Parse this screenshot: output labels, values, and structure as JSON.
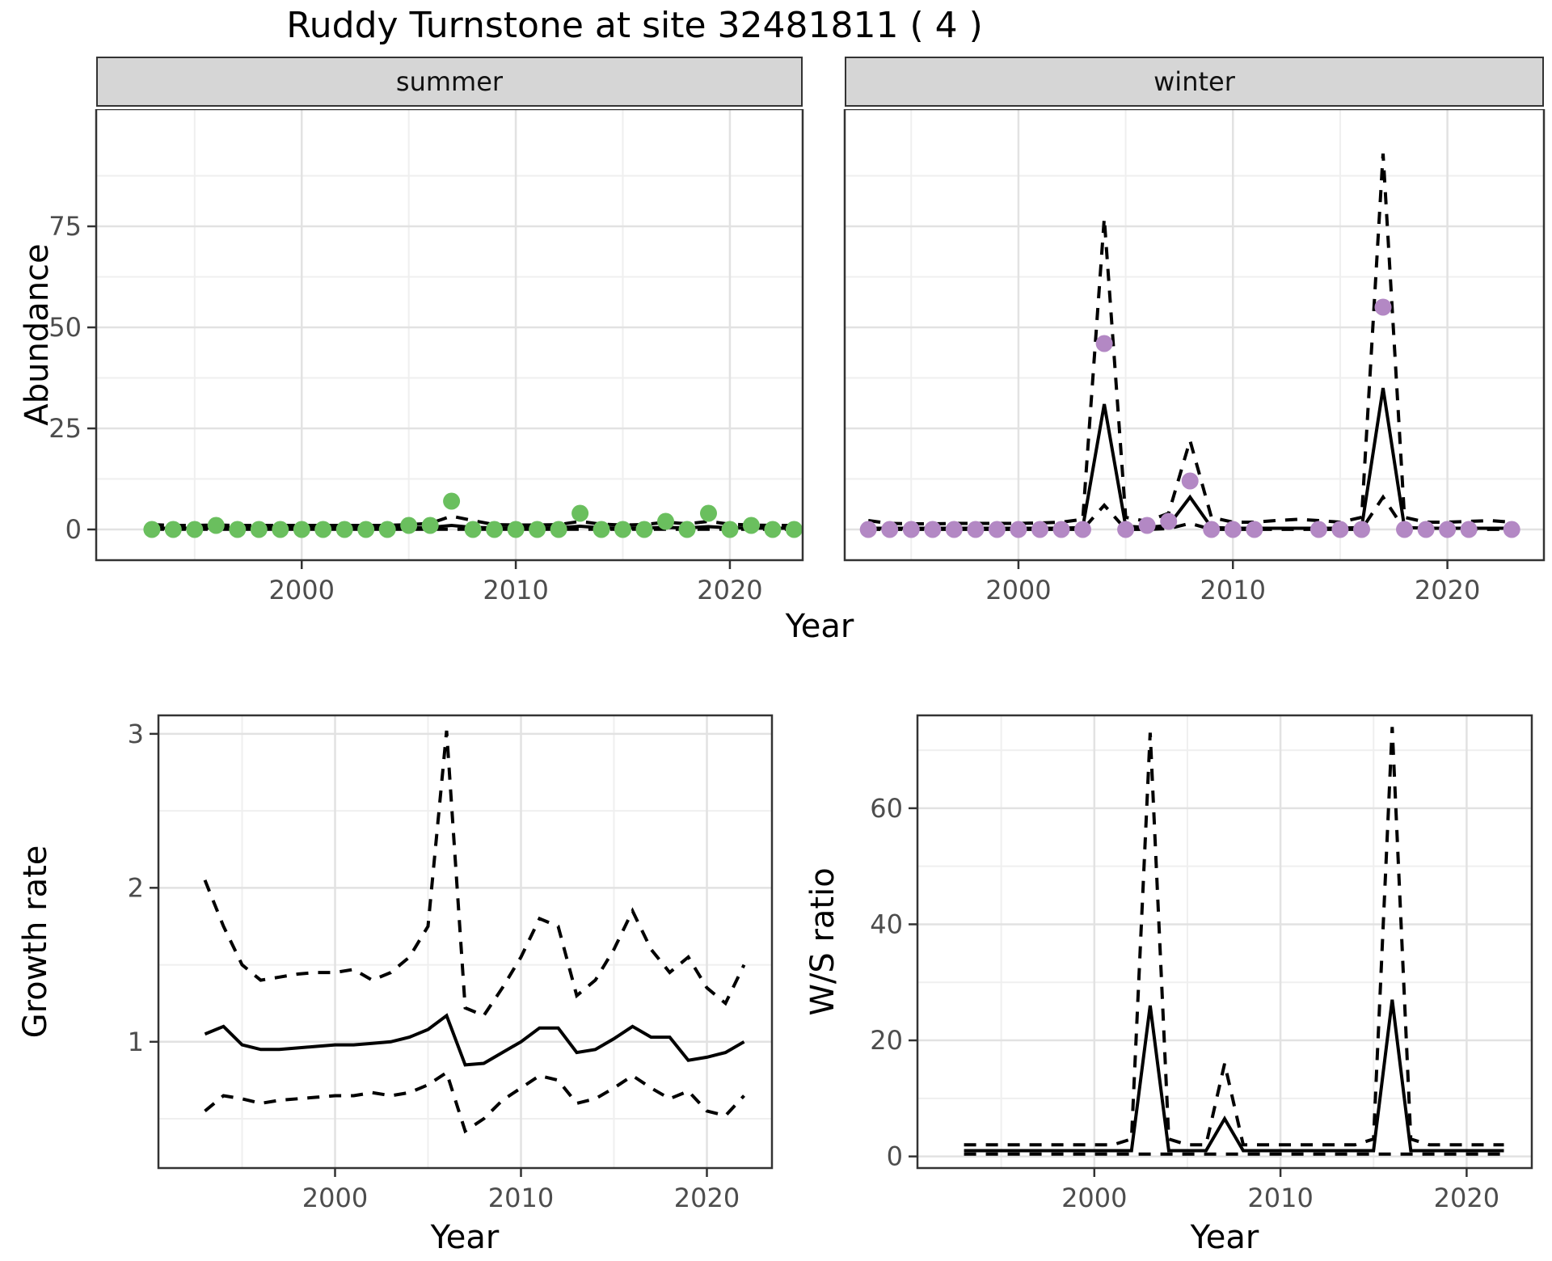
{
  "title": "Ruddy Turnstone at site 32481811 ( 4 )",
  "colors": {
    "summer_point": "#6abf5e",
    "winter_point": "#b388c4",
    "line": "#000000",
    "grid_major": "#e2e2e2",
    "grid_minor": "#efefef",
    "strip_bg": "#d6d6d6",
    "axis_text": "#4d4d4d",
    "panel_border": "#333333"
  },
  "facets": {
    "summer_label": "summer",
    "winter_label": "winter"
  },
  "axis_labels": {
    "abundance": "Abundance",
    "year_top": "Year",
    "growth": "Growth rate",
    "year_growth": "Year",
    "ws": "W/S ratio",
    "year_ws": "Year"
  },
  "chart_data": [
    {
      "name": "abundance-summer",
      "type": "line",
      "facet_label": "summer",
      "x_label": "Year",
      "y_label": "Abundance",
      "xlim": [
        1990.4,
        2023.4
      ],
      "ylim": [
        -7.6,
        104
      ],
      "x_ticks": [
        2000,
        2010,
        2020
      ],
      "x_minor": [
        1995,
        2005,
        2015
      ],
      "y_ticks": [
        0,
        25,
        50,
        75
      ],
      "y_minor": [
        12.5,
        37.5,
        62.5,
        87.5
      ],
      "show_y_labels": true,
      "years": [
        1993,
        1994,
        1995,
        1996,
        1997,
        1998,
        1999,
        2000,
        2001,
        2002,
        2003,
        2004,
        2005,
        2006,
        2007,
        2008,
        2009,
        2010,
        2011,
        2012,
        2013,
        2014,
        2015,
        2016,
        2017,
        2018,
        2019,
        2020,
        2021,
        2022,
        2023
      ],
      "series": [
        {
          "name": "upper-ci",
          "style": "dashed",
          "values": [
            1.2,
            1.0,
            1.0,
            1.1,
            1.0,
            1.0,
            1.0,
            1.0,
            1.0,
            1.0,
            1.0,
            1.0,
            1.2,
            1.5,
            3.3,
            2.2,
            1.2,
            1.1,
            1.1,
            1.2,
            2.0,
            1.3,
            1.1,
            1.2,
            1.8,
            1.4,
            2.0,
            1.3,
            1.1,
            1.0,
            1.0
          ]
        },
        {
          "name": "fit",
          "style": "solid",
          "values": [
            0.3,
            0.3,
            0.3,
            0.35,
            0.3,
            0.3,
            0.3,
            0.3,
            0.3,
            0.3,
            0.3,
            0.3,
            0.4,
            0.5,
            1.0,
            0.5,
            0.4,
            0.35,
            0.35,
            0.4,
            0.8,
            0.4,
            0.35,
            0.35,
            0.5,
            0.4,
            0.7,
            0.4,
            0.35,
            0.3,
            0.3
          ]
        },
        {
          "name": "lower-ci",
          "style": "dashed",
          "values": [
            0.05,
            0.05,
            0.05,
            0.05,
            0.05,
            0.05,
            0.05,
            0.05,
            0.05,
            0.05,
            0.05,
            0.05,
            0.05,
            0.05,
            0.05,
            0.05,
            0.05,
            0.05,
            0.05,
            0.05,
            0.05,
            0.05,
            0.05,
            0.05,
            0.05,
            0.05,
            0.05,
            0.05,
            0.05,
            0.05,
            0.05
          ]
        }
      ],
      "points": {
        "color_key": "summer_point",
        "years": [
          1993,
          1994,
          1995,
          1996,
          1997,
          1998,
          1999,
          2000,
          2001,
          2002,
          2003,
          2004,
          2005,
          2006,
          2007,
          2008,
          2009,
          2010,
          2011,
          2012,
          2013,
          2014,
          2015,
          2016,
          2017,
          2018,
          2019,
          2020,
          2021,
          2022,
          2023
        ],
        "values": [
          0,
          0,
          0,
          1,
          0,
          0,
          0,
          0,
          0,
          0,
          0,
          0,
          1,
          1,
          7,
          0,
          0,
          0,
          0,
          0,
          4,
          0,
          0,
          0,
          2,
          0,
          4,
          0,
          1,
          0,
          0
        ]
      }
    },
    {
      "name": "abundance-winter",
      "type": "line",
      "facet_label": "winter",
      "x_label": "Year",
      "y_label": "Abundance",
      "xlim": [
        1991.9,
        2024.5
      ],
      "ylim": [
        -7.6,
        104
      ],
      "x_ticks": [
        2000,
        2010,
        2020
      ],
      "x_minor": [
        1995,
        2005,
        2015
      ],
      "y_ticks": [
        0,
        25,
        50,
        75
      ],
      "y_minor": [
        12.5,
        37.5,
        62.5,
        87.5
      ],
      "show_y_labels": false,
      "years": [
        1993,
        1994,
        1995,
        1996,
        1997,
        1998,
        1999,
        2000,
        2001,
        2002,
        2003,
        2004,
        2005,
        2006,
        2007,
        2008,
        2009,
        2010,
        2011,
        2012,
        2013,
        2014,
        2015,
        2016,
        2017,
        2018,
        2019,
        2020,
        2021,
        2022,
        2023
      ],
      "series": [
        {
          "name": "upper-ci",
          "style": "dashed",
          "values": [
            2.2,
            1.5,
            1.4,
            1.4,
            1.5,
            1.5,
            1.5,
            1.5,
            1.6,
            1.8,
            2.5,
            77,
            3,
            2,
            4,
            22,
            3,
            1.8,
            1.8,
            2.2,
            2.5,
            2.2,
            1.8,
            3,
            93,
            3,
            1.8,
            1.8,
            2,
            2.2,
            1.8
          ]
        },
        {
          "name": "fit",
          "style": "solid",
          "values": [
            0.3,
            0.3,
            0.3,
            0.3,
            0.3,
            0.3,
            0.3,
            0.3,
            0.3,
            0.3,
            0.5,
            31,
            0.8,
            0.5,
            1.0,
            8,
            0.5,
            0.3,
            0.3,
            0.3,
            0.3,
            0.3,
            0.3,
            0.5,
            35,
            0.5,
            0.3,
            0.3,
            0.3,
            0.3,
            0.3
          ]
        },
        {
          "name": "lower-ci",
          "style": "dashed",
          "values": [
            0.02,
            0.02,
            0.02,
            0.02,
            0.02,
            0.02,
            0.02,
            0.02,
            0.02,
            0.02,
            0.02,
            6,
            0.02,
            0.02,
            0.2,
            1.5,
            0.02,
            0.02,
            0.02,
            0.02,
            0.02,
            0.02,
            0.02,
            0.02,
            8,
            0.02,
            0.02,
            0.02,
            0.02,
            0.02,
            0.02
          ]
        }
      ],
      "points": {
        "color_key": "winter_point",
        "years": [
          1993,
          1994,
          1995,
          1996,
          1997,
          1998,
          1999,
          2000,
          2001,
          2002,
          2003,
          2004,
          2005,
          2006,
          2007,
          2008,
          2009,
          2010,
          2011,
          2014,
          2015,
          2016,
          2017,
          2018,
          2019,
          2020,
          2021,
          2023
        ],
        "values": [
          0,
          0,
          0,
          0,
          0,
          0,
          0,
          0,
          0,
          0,
          0,
          46,
          0,
          1,
          2,
          12,
          0,
          0,
          0,
          0,
          0,
          0,
          55,
          0,
          0,
          0,
          0,
          0
        ]
      }
    },
    {
      "name": "growth-rate",
      "type": "line",
      "facet_label": "",
      "x_label": "Year",
      "y_label": "Growth rate",
      "xlim": [
        1990.5,
        2023.5
      ],
      "ylim": [
        0.18,
        3.12
      ],
      "x_ticks": [
        2000,
        2010,
        2020
      ],
      "x_minor": [
        1995,
        2005,
        2015
      ],
      "y_ticks": [
        1,
        2,
        3
      ],
      "y_minor": [
        0.5,
        1.5,
        2.5
      ],
      "show_y_labels": true,
      "years": [
        1993,
        1994,
        1995,
        1996,
        1997,
        1998,
        1999,
        2000,
        2001,
        2002,
        2003,
        2004,
        2005,
        2006,
        2007,
        2008,
        2009,
        2010,
        2011,
        2012,
        2013,
        2014,
        2015,
        2016,
        2017,
        2018,
        2019,
        2020,
        2021,
        2022
      ],
      "series": [
        {
          "name": "upper-ci",
          "style": "dashed",
          "values": [
            2.05,
            1.75,
            1.5,
            1.4,
            1.42,
            1.44,
            1.45,
            1.45,
            1.47,
            1.4,
            1.45,
            1.55,
            1.75,
            3.02,
            1.22,
            1.17,
            1.35,
            1.55,
            1.8,
            1.75,
            1.3,
            1.4,
            1.6,
            1.85,
            1.6,
            1.45,
            1.55,
            1.35,
            1.25,
            1.5
          ]
        },
        {
          "name": "fit",
          "style": "solid",
          "values": [
            1.05,
            1.1,
            0.98,
            0.95,
            0.95,
            0.96,
            0.97,
            0.98,
            0.98,
            0.99,
            1.0,
            1.03,
            1.08,
            1.17,
            0.85,
            0.86,
            0.93,
            1.0,
            1.09,
            1.09,
            0.93,
            0.95,
            1.02,
            1.1,
            1.03,
            1.03,
            0.88,
            0.9,
            0.93,
            1.0
          ]
        },
        {
          "name": "lower-ci",
          "style": "dashed",
          "values": [
            0.55,
            0.65,
            0.63,
            0.6,
            0.62,
            0.63,
            0.64,
            0.65,
            0.65,
            0.67,
            0.65,
            0.67,
            0.72,
            0.8,
            0.42,
            0.5,
            0.62,
            0.7,
            0.78,
            0.75,
            0.6,
            0.63,
            0.7,
            0.78,
            0.7,
            0.63,
            0.68,
            0.55,
            0.52,
            0.65
          ]
        }
      ],
      "points": null
    },
    {
      "name": "ws-ratio",
      "type": "line",
      "facet_label": "",
      "x_label": "Year",
      "y_label": "W/S ratio",
      "xlim": [
        1990.5,
        2023.5
      ],
      "ylim": [
        -2,
        76
      ],
      "x_ticks": [
        2000,
        2010,
        2020
      ],
      "x_minor": [
        1995,
        2005,
        2015
      ],
      "y_ticks": [
        0,
        20,
        40,
        60
      ],
      "y_minor": [
        10,
        30,
        50,
        70
      ],
      "show_y_labels": true,
      "years": [
        1993,
        1994,
        1995,
        1996,
        1997,
        1998,
        1999,
        2000,
        2001,
        2002,
        2003,
        2004,
        2005,
        2006,
        2007,
        2008,
        2009,
        2010,
        2011,
        2012,
        2013,
        2014,
        2015,
        2016,
        2017,
        2018,
        2019,
        2020,
        2021,
        2022
      ],
      "series": [
        {
          "name": "upper-ci",
          "style": "dashed",
          "values": [
            2,
            2,
            2,
            2,
            2,
            2,
            2,
            2,
            2,
            3,
            73,
            3,
            2,
            2,
            16,
            2,
            2,
            2,
            2,
            2,
            2,
            2,
            3,
            74,
            3,
            2,
            2,
            2,
            2,
            2
          ]
        },
        {
          "name": "fit",
          "style": "solid",
          "values": [
            1,
            1,
            1,
            1,
            1,
            1,
            1,
            1,
            1,
            1,
            26,
            1,
            1,
            1,
            6.5,
            1,
            1,
            1,
            1,
            1,
            1,
            1,
            1,
            27,
            1,
            1,
            1,
            1,
            1,
            1
          ]
        },
        {
          "name": "lower-ci",
          "style": "dashed",
          "values": [
            0.4,
            0.4,
            0.4,
            0.4,
            0.4,
            0.4,
            0.4,
            0.4,
            0.4,
            0.4,
            0.4,
            0.4,
            0.4,
            0.4,
            0.4,
            0.4,
            0.4,
            0.4,
            0.4,
            0.4,
            0.4,
            0.4,
            0.4,
            0.4,
            0.4,
            0.4,
            0.4,
            0.4,
            0.4,
            0.4
          ]
        }
      ],
      "points": null
    }
  ]
}
